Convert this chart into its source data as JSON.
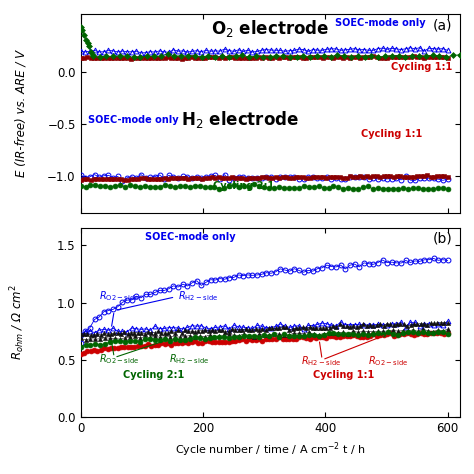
{
  "xlabel": "Cycle number / time / A cm$^{-2}$ t / h",
  "ylabel_a": "E (IR-free) vs. ARE / V",
  "ylabel_b": "R$_{ohm}$ / Ω cm$^2$",
  "xlim": [
    0,
    620
  ],
  "ylim_a": [
    -1.35,
    0.55
  ],
  "ylim_b": [
    0,
    1.65
  ],
  "yticks_a": [
    0.0,
    -0.5,
    -1.0
  ],
  "yticks_b": [
    0,
    0.5,
    1.0,
    1.5
  ],
  "xticks": [
    0,
    200,
    400,
    600
  ],
  "colors": {
    "blue": "#0000EE",
    "red": "#CC0000",
    "green": "#006400",
    "dark": "#111111",
    "darkred": "#8B0000"
  }
}
